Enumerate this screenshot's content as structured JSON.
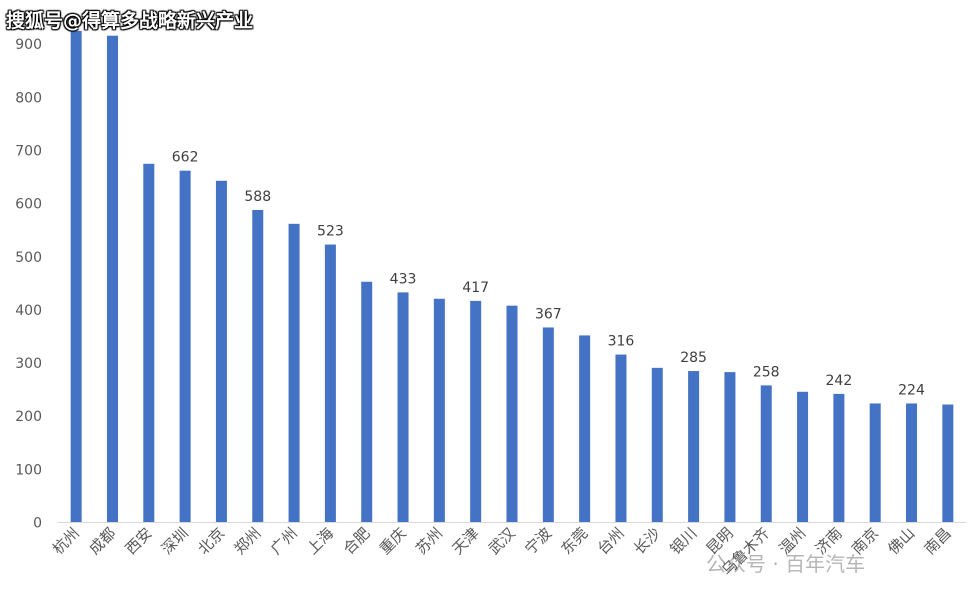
{
  "watermarks": {
    "top": "搜狐号@得算多战略新兴产业",
    "bottom": "公众号 · 百年汽车"
  },
  "colors": {
    "bar": "#4472c4",
    "axis": "#d9d9d9",
    "text": "#595959",
    "label": "#404040"
  },
  "chart_data": {
    "type": "bar",
    "categories": [
      "杭州",
      "成都",
      "西安",
      "深圳",
      "北京",
      "郑州",
      "广州",
      "上海",
      "合肥",
      "重庆",
      "苏州",
      "天津",
      "武汉",
      "宁波",
      "东莞",
      "台州",
      "长沙",
      "银川",
      "昆明",
      "乌鲁木齐",
      "温州",
      "济南",
      "南京",
      "佛山",
      "南昌"
    ],
    "values": [
      925,
      916,
      675,
      662,
      643,
      588,
      562,
      523,
      453,
      433,
      421,
      417,
      408,
      367,
      352,
      316,
      291,
      285,
      283,
      258,
      246,
      242,
      224,
      224,
      222
    ],
    "data_labels": [
      "",
      "",
      "",
      "662",
      "",
      "588",
      "",
      "523",
      "",
      "433",
      "",
      "417",
      "",
      "367",
      "",
      "316",
      "",
      "285",
      "",
      "258",
      "",
      "242",
      "",
      "224",
      ""
    ],
    "yticks": [
      "0",
      "100",
      "200",
      "300",
      "400",
      "500",
      "600",
      "700",
      "800",
      "900"
    ],
    "ylim": [
      0,
      930
    ],
    "grid": false,
    "legend": "none"
  }
}
